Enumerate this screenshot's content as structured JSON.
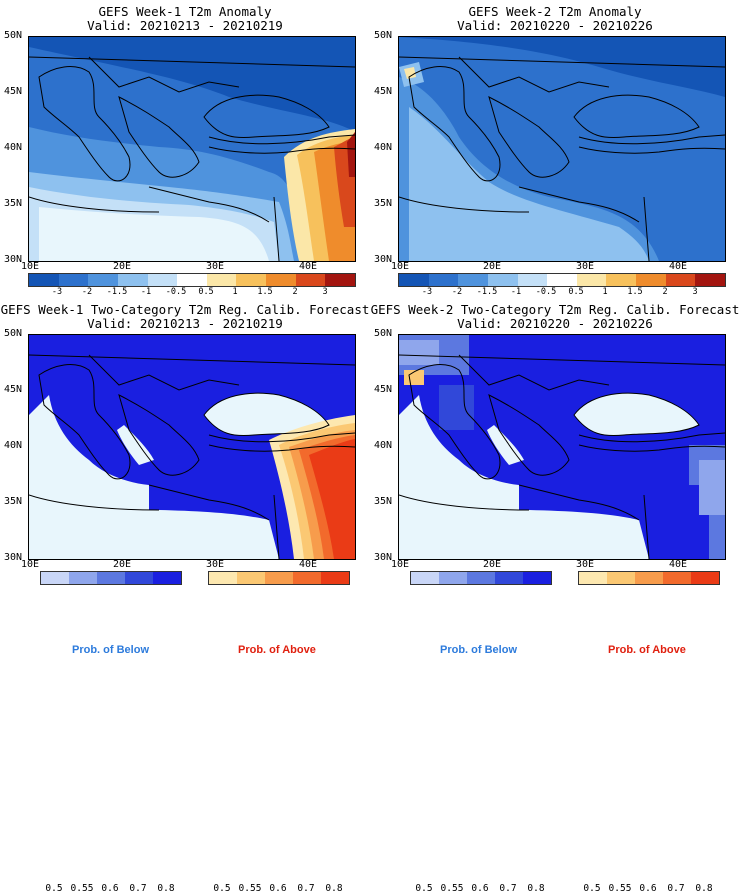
{
  "chart_data": [
    {
      "type": "heatmap",
      "title": "GEFS Week-1 T2m Anomaly",
      "subtitle": "Valid: 20210213 - 20210219",
      "y_ticks": [
        "50N",
        "45N",
        "40N",
        "35N",
        "30N"
      ],
      "x_ticks": [
        "10E",
        "20E",
        "30E",
        "40E"
      ],
      "colorbar_ticks": [
        "-3",
        "-2",
        "-1.5",
        "-1",
        "-0.5",
        "0.5",
        "1",
        "1.5",
        "2",
        "3"
      ],
      "colorbar_colors": [
        "#1455b5",
        "#2d71cc",
        "#4f93dd",
        "#8ec1ef",
        "#c4e0f7",
        "#ffffff",
        "#fbe7a8",
        "#f7c15c",
        "#ef8c2c",
        "#d9481c",
        "#a3150f"
      ],
      "xlim": [
        10,
        45
      ],
      "ylim": [
        30,
        50
      ],
      "pattern": "strong cold anomaly over Balkans and Black Sea; warm anomaly over eastern Turkey and Syria"
    },
    {
      "type": "heatmap",
      "title": "GEFS Week-2 T2m Anomaly",
      "subtitle": "Valid: 20210220 - 20210226",
      "y_ticks": [
        "50N",
        "45N",
        "40N",
        "35N",
        "30N"
      ],
      "x_ticks": [
        "10E",
        "20E",
        "30E",
        "40E"
      ],
      "colorbar_ticks": [
        "-3",
        "-2",
        "-1.5",
        "-1",
        "-0.5",
        "0.5",
        "1",
        "1.5",
        "2",
        "3"
      ],
      "colorbar_colors": [
        "#1455b5",
        "#2d71cc",
        "#4f93dd",
        "#8ec1ef",
        "#c4e0f7",
        "#ffffff",
        "#fbe7a8",
        "#f7c15c",
        "#ef8c2c",
        "#d9481c",
        "#a3150f"
      ],
      "xlim": [
        10,
        45
      ],
      "ylim": [
        30,
        50
      ],
      "pattern": "cold anomaly across the whole region"
    },
    {
      "type": "heatmap",
      "title": "GEFS Week-1 Two-Category T2m Reg. Calib. Forecast",
      "subtitle": "Valid: 20210213 - 20210219",
      "y_ticks": [
        "50N",
        "45N",
        "40N",
        "35N",
        "30N"
      ],
      "x_ticks": [
        "10E",
        "20E",
        "30E",
        "40E"
      ],
      "below_ticks": [
        "0.5",
        "0.55",
        "0.6",
        "0.7",
        "0.8"
      ],
      "above_ticks": [
        "0.5",
        "0.55",
        "0.6",
        "0.7",
        "0.8"
      ],
      "below_colors": [
        "#c9d6f7",
        "#8fa6ec",
        "#5c78e0",
        "#3148d9",
        "#1a1fe0"
      ],
      "above_colors": [
        "#fde8b0",
        "#fbc873",
        "#f79c4c",
        "#f26a2c",
        "#ea3b16"
      ],
      "xlim": [
        10,
        45
      ],
      "ylim": [
        30,
        50
      ],
      "pattern": "high probability of below over land except eastern Turkey and Syria (above)"
    },
    {
      "type": "heatmap",
      "title": "GEFS Week-2 Two-Category T2m Reg. Calib. Forecast",
      "subtitle": "Valid: 20210220 - 20210226",
      "y_ticks": [
        "50N",
        "45N",
        "40N",
        "35N",
        "30N"
      ],
      "x_ticks": [
        "10E",
        "20E",
        "30E",
        "40E"
      ],
      "below_ticks": [
        "0.5",
        "0.55",
        "0.6",
        "0.7",
        "0.8"
      ],
      "above_ticks": [
        "0.5",
        "0.55",
        "0.6",
        "0.7",
        "0.8"
      ],
      "below_colors": [
        "#c9d6f7",
        "#8fa6ec",
        "#5c78e0",
        "#3148d9",
        "#1a1fe0"
      ],
      "above_colors": [
        "#fde8b0",
        "#fbc873",
        "#f79c4c",
        "#f26a2c",
        "#ea3b16"
      ],
      "xlim": [
        10,
        45
      ],
      "ylim": [
        30,
        50
      ],
      "pattern": "high probability of below over most land"
    }
  ],
  "legend": {
    "below_label": "Prob. of Below",
    "above_label": "Prob. of Above",
    "below_color": "#2d7bdc",
    "above_color": "#e0200f"
  },
  "colors": {
    "sea": "#e8f6fc",
    "land_prob": "#1a1fe0",
    "border": "#000000"
  }
}
